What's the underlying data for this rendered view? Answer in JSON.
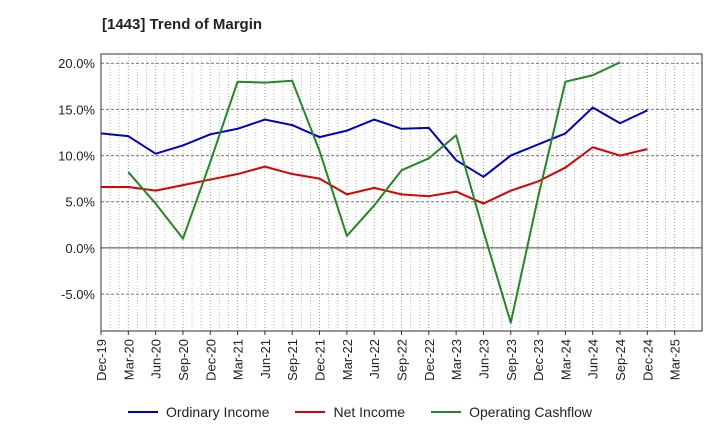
{
  "chart_data": {
    "type": "line",
    "title": "[1443]  Trend of Margin",
    "xlabel": "",
    "ylabel": "",
    "ylim": [
      -9,
      21
    ],
    "yticks": [
      20,
      15,
      10,
      5,
      0,
      -5
    ],
    "ytick_labels": [
      "20.0%",
      "15.0%",
      "10.0%",
      "5.0%",
      "0.0%",
      "-5.0%"
    ],
    "categories": [
      "Dec-19",
      "Mar-20",
      "Jun-20",
      "Sep-20",
      "Dec-20",
      "Mar-21",
      "Jun-21",
      "Sep-21",
      "Dec-21",
      "Mar-22",
      "Jun-22",
      "Sep-22",
      "Dec-22",
      "Mar-23",
      "Jun-23",
      "Sep-23",
      "Dec-23",
      "Mar-24",
      "Jun-24",
      "Sep-24",
      "Dec-24",
      "Mar-25"
    ],
    "grid": true,
    "legend_position": "bottom",
    "series": [
      {
        "name": "Ordinary Income",
        "color": "#0000cc",
        "values": [
          12.4,
          12.1,
          10.2,
          11.1,
          12.3,
          12.9,
          13.9,
          13.3,
          12.0,
          12.7,
          13.9,
          12.9,
          13.0,
          9.5,
          7.7,
          10.0,
          11.2,
          12.4,
          15.2,
          13.5,
          14.9,
          null
        ]
      },
      {
        "name": "Net Income",
        "color": "#dd0000",
        "values": [
          6.6,
          6.6,
          6.2,
          6.8,
          7.4,
          8.0,
          8.8,
          8.0,
          7.5,
          5.8,
          6.5,
          5.8,
          5.6,
          6.1,
          4.8,
          6.2,
          7.2,
          8.7,
          10.9,
          10.0,
          10.7,
          null
        ]
      },
      {
        "name": "Operating Cashflow",
        "color": "#228822",
        "values": [
          null,
          8.2,
          4.8,
          1.0,
          9.3,
          18.0,
          17.9,
          18.1,
          10.5,
          1.3,
          4.6,
          8.4,
          9.7,
          12.2,
          1.8,
          -8.1,
          5.5,
          18.0,
          18.7,
          20.1,
          null,
          null
        ]
      }
    ]
  }
}
